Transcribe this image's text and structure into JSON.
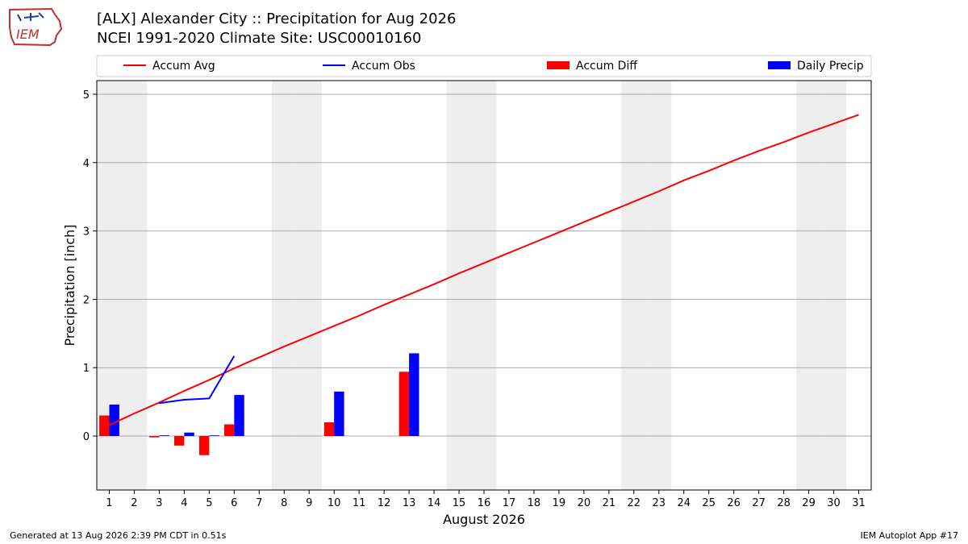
{
  "header": {
    "title_line1": "[ALX] Alexander City :: Precipitation for Aug 2026",
    "title_line2": "NCEI 1991-2020 Climate Site: USC00010160",
    "logo_text": "IEM"
  },
  "footer": {
    "generated": "Generated at 13 Aug 2026 2:39 PM CDT in 0.51s",
    "app": "IEM Autoplot App #17"
  },
  "colors": {
    "accum_avg": "#ff0000",
    "accum_obs": "#0000ff",
    "accum_diff": "#ff0000",
    "daily_precip": "#0000ff",
    "weekend_shade": "#eeeeee",
    "grid": "#aaaaaa"
  },
  "chart_data": {
    "type": "bar",
    "title": "[ALX] Alexander City :: Precipitation for Aug 2026",
    "subtitle": "NCEI 1991-2020 Climate Site: USC00010160",
    "xlabel": "August 2026",
    "ylabel": "Precipitation [inch]",
    "x": [
      1,
      2,
      3,
      4,
      5,
      6,
      7,
      8,
      9,
      10,
      11,
      12,
      13,
      14,
      15,
      16,
      17,
      18,
      19,
      20,
      21,
      22,
      23,
      24,
      25,
      26,
      27,
      28,
      29,
      30,
      31
    ],
    "xlim": [
      0.5,
      31.5
    ],
    "ylim": [
      -0.79,
      5.2
    ],
    "yticks": [
      0,
      1,
      2,
      3,
      4,
      5
    ],
    "grid": "horizontal",
    "legend": {
      "position": "top",
      "entries": [
        "Accum Avg",
        "Accum Obs",
        "Accum Diff",
        "Daily Precip"
      ]
    },
    "weekend_days": [
      1,
      2,
      8,
      9,
      15,
      16,
      22,
      23,
      29,
      30
    ],
    "series": [
      {
        "name": "Accum Avg",
        "kind": "line",
        "x": [
          1,
          2,
          3,
          4,
          5,
          6,
          7,
          8,
          9,
          10,
          11,
          12,
          13,
          14,
          15,
          16,
          17,
          18,
          19,
          20,
          21,
          22,
          23,
          24,
          25,
          26,
          27,
          28,
          29,
          30,
          31
        ],
        "values": [
          0.16,
          0.33,
          0.49,
          0.66,
          0.82,
          0.99,
          1.15,
          1.31,
          1.46,
          1.61,
          1.76,
          1.92,
          2.07,
          2.22,
          2.38,
          2.53,
          2.68,
          2.83,
          2.98,
          3.13,
          3.28,
          3.43,
          3.58,
          3.74,
          3.88,
          4.03,
          4.17,
          4.3,
          4.44,
          4.57,
          4.7
        ]
      },
      {
        "name": "Accum Obs",
        "kind": "line",
        "x": [
          3,
          4,
          5,
          6
        ],
        "values": [
          0.48,
          0.53,
          0.55,
          1.17
        ]
      },
      {
        "name": "Accum Diff",
        "kind": "bar",
        "x": [
          1,
          3,
          4,
          5,
          6,
          10,
          13
        ],
        "values": [
          0.3,
          -0.02,
          -0.14,
          -0.28,
          0.17,
          0.2,
          0.94
        ]
      },
      {
        "name": "Daily Precip",
        "kind": "bar",
        "x": [
          1,
          3,
          4,
          5,
          6,
          10,
          13
        ],
        "values": [
          0.46,
          0.01,
          0.05,
          0.01,
          0.6,
          0.65,
          1.21
        ]
      }
    ]
  }
}
